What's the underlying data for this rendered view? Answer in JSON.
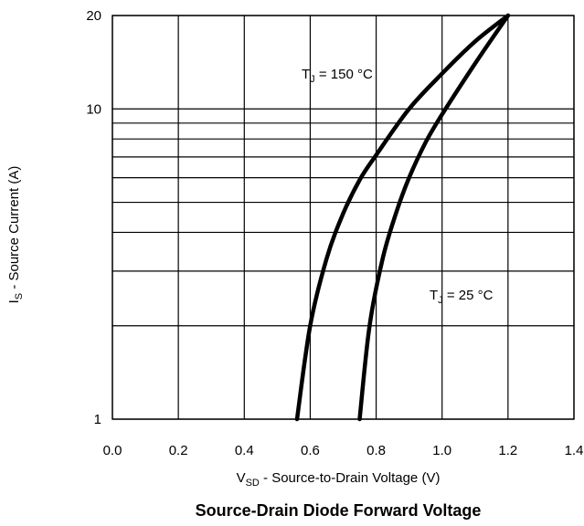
{
  "chart_data": {
    "type": "line",
    "caption": "Source-Drain Diode Forward Voltage",
    "xlabel": {
      "main": "V",
      "sub": "SD",
      "rest": " - Source-to-Drain Voltage (V)"
    },
    "ylabel": {
      "main": "I",
      "sub": "S",
      "rest": " - Source Current (A)"
    },
    "xlim": [
      0.0,
      1.4
    ],
    "ylim": [
      1,
      20
    ],
    "yscale": "log",
    "grid": true,
    "x_ticks": [
      "0.0",
      "0.2",
      "0.4",
      "0.6",
      "0.8",
      "1.0",
      "1.2",
      "1.4"
    ],
    "y_tick_labels": [
      {
        "value": 20,
        "label": "20"
      },
      {
        "value": 10,
        "label": "10"
      },
      {
        "value": 1,
        "label": "1"
      }
    ],
    "series": [
      {
        "name": "TJ = 150 °C",
        "label": {
          "main": "T",
          "sub": "J",
          "rest": " = 150 °C"
        },
        "points": [
          [
            0.56,
            1.0
          ],
          [
            0.6,
            2.0
          ],
          [
            0.65,
            3.3
          ],
          [
            0.7,
            4.6
          ],
          [
            0.75,
            5.9
          ],
          [
            0.8,
            7.1
          ],
          [
            0.9,
            10.0
          ],
          [
            1.0,
            13.0
          ],
          [
            1.1,
            16.5
          ],
          [
            1.2,
            20.0
          ]
        ]
      },
      {
        "name": "TJ = 25 °C",
        "label": {
          "main": "T",
          "sub": "J",
          "rest": " = 25 °C"
        },
        "points": [
          [
            0.75,
            1.0
          ],
          [
            0.78,
            2.0
          ],
          [
            0.82,
            3.3
          ],
          [
            0.86,
            4.6
          ],
          [
            0.9,
            6.0
          ],
          [
            0.95,
            7.8
          ],
          [
            1.0,
            9.6
          ],
          [
            1.1,
            14.0
          ],
          [
            1.2,
            20.0
          ]
        ]
      }
    ]
  }
}
